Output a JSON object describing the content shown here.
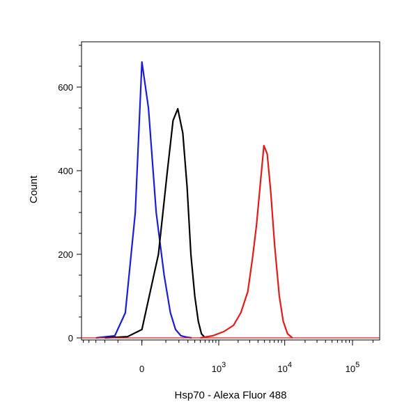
{
  "chart_data": {
    "type": "line",
    "subtype": "flow-cytometry-histogram-overlay",
    "title": "",
    "xlabel": "Hsp70 - Alexa Fluor 488",
    "ylabel": "Count",
    "xscale": "biexponential (linear near 0, log above)",
    "ylim": [
      0,
      720
    ],
    "grid": false,
    "legend": "none",
    "y_ticks": [
      {
        "value": 0,
        "label": "0"
      },
      {
        "value": 200,
        "label": "200"
      },
      {
        "value": 400,
        "label": "400"
      },
      {
        "value": 600,
        "label": "600"
      }
    ],
    "x_ticks": [
      {
        "value": 0,
        "base": "0",
        "exp": ""
      },
      {
        "value": 1000,
        "base": "10",
        "exp": "3"
      },
      {
        "value": 10000,
        "base": "10",
        "exp": "4"
      },
      {
        "value": 100000,
        "base": "10",
        "exp": "5"
      }
    ],
    "series": [
      {
        "color": "#1c1cd6",
        "x": [
          -300,
          -120,
          -60,
          -20,
          0,
          20,
          50,
          90,
          130,
          170,
          220,
          280,
          350
        ],
        "y": [
          0,
          5,
          60,
          300,
          660,
          550,
          300,
          150,
          60,
          20,
          5,
          2,
          0
        ]
      },
      {
        "color": "#000000",
        "x": [
          -200,
          -50,
          0,
          60,
          110,
          150,
          190,
          240,
          290,
          340,
          400,
          460,
          520,
          600
        ],
        "y": [
          0,
          3,
          20,
          200,
          400,
          520,
          548,
          490,
          360,
          200,
          100,
          40,
          10,
          0
        ]
      },
      {
        "color": "#e01b1b",
        "x": [
          500,
          800,
          1200,
          1700,
          2200,
          2800,
          3300,
          3800,
          4400,
          4900,
          5500,
          6200,
          7100,
          8300,
          9500,
          11000,
          13000
        ],
        "y": [
          0,
          5,
          15,
          30,
          60,
          110,
          190,
          270,
          380,
          460,
          440,
          350,
          220,
          100,
          40,
          10,
          0
        ]
      }
    ]
  }
}
